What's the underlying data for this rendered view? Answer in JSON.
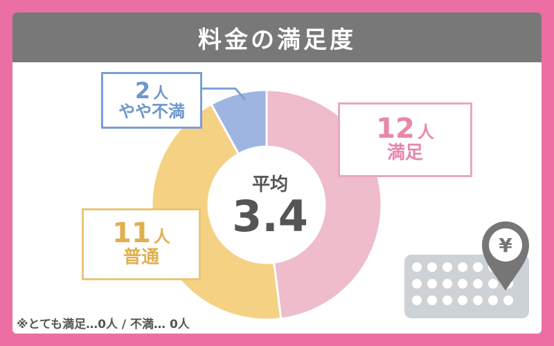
{
  "title": "料金の満足度",
  "chart_data": {
    "type": "pie",
    "donut": true,
    "title": "料金の満足度",
    "categories": [
      "満足",
      "普通",
      "やや不満"
    ],
    "values": [
      12,
      11,
      2
    ],
    "unit": "人",
    "colors": [
      "#eebccb",
      "#f5d184",
      "#9db5e0"
    ],
    "start": "top, clockwise"
  },
  "labels": {
    "manzoku": {
      "count": "12",
      "unit": "人",
      "name": "満足"
    },
    "futsu": {
      "count": "11",
      "unit": "人",
      "name": "普通"
    },
    "yaya": {
      "count": "2",
      "unit": "人",
      "name": "やや不満"
    }
  },
  "average": {
    "label": "平均",
    "value": "3.4"
  },
  "footnote": "※とても満足…0人 / 不満… 0人",
  "illustration": {
    "icon": "yen-pin-icon",
    "symbol": "¥"
  }
}
